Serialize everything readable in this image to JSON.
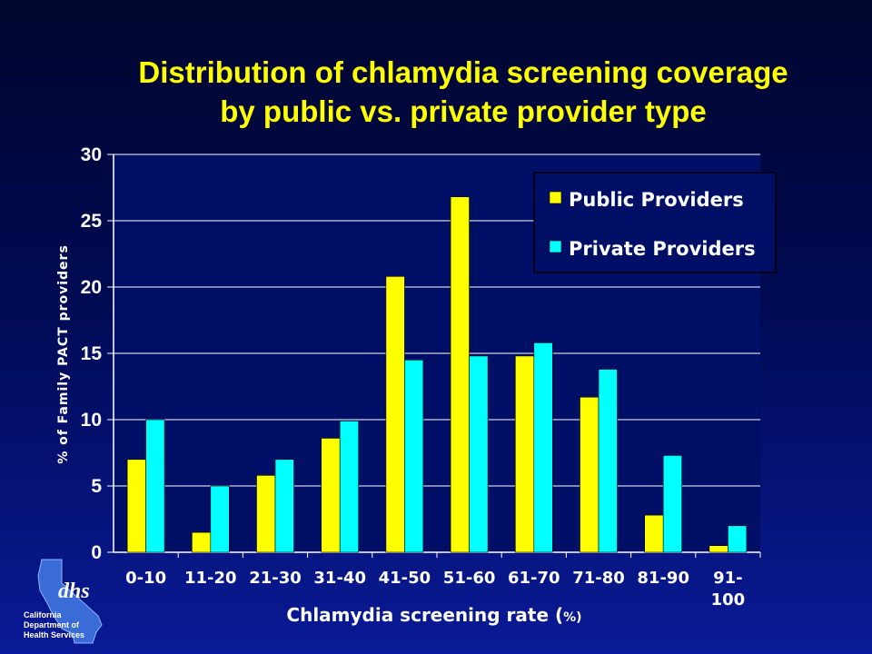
{
  "title_line1": "Distribution of chlamydia screening coverage",
  "title_line2": "by public vs. private provider type",
  "logo": {
    "mark": "dhs",
    "line1": "California",
    "line2": "Department of",
    "line3": "Health Services"
  },
  "colors": {
    "public": "#ffff00",
    "private": "#00ffff",
    "title": "#ffff00",
    "plot_bg": "#000f66"
  },
  "chart_data": {
    "type": "bar",
    "categories": [
      "0-10",
      "11-20",
      "21-30",
      "31-40",
      "41-50",
      "51-60",
      "61-70",
      "71-80",
      "81-90",
      "91-100"
    ],
    "category_labels": [
      [
        "0-10"
      ],
      [
        "11-20"
      ],
      [
        "21-30"
      ],
      [
        "31-40"
      ],
      [
        "41-50"
      ],
      [
        "51-60"
      ],
      [
        "61-70"
      ],
      [
        "71-80"
      ],
      [
        "81-90"
      ],
      [
        "91-",
        "100"
      ]
    ],
    "series": [
      {
        "name": "Public Providers",
        "values": [
          7.0,
          1.5,
          5.8,
          8.6,
          20.8,
          26.8,
          14.8,
          11.7,
          2.8,
          0.5
        ]
      },
      {
        "name": "Private Providers",
        "values": [
          10.0,
          5.0,
          7.0,
          9.9,
          14.5,
          14.8,
          15.8,
          13.8,
          7.3,
          2.0
        ]
      }
    ],
    "xlabel": "Chlamydia screening rate (",
    "xlabel_unit": "%)",
    "ylabel": "% of Family PACT providers",
    "ylim": [
      0,
      30
    ],
    "yticks": [
      0,
      5,
      10,
      15,
      20,
      25,
      30
    ],
    "grid": true,
    "legend_position": "top-right"
  }
}
